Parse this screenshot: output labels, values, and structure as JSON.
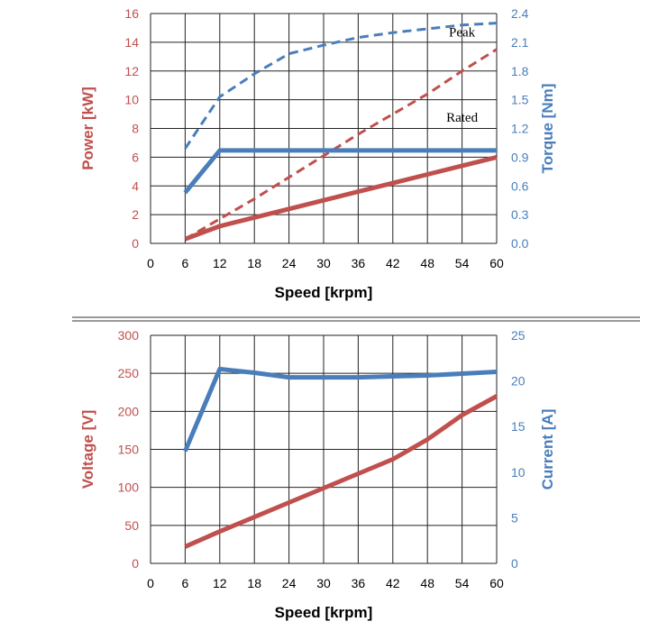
{
  "colors": {
    "red": "#c0504d",
    "blue": "#4a7ebb",
    "grid": "#222222",
    "separator": "#999999"
  },
  "chart_data": [
    {
      "type": "line",
      "xlabel": "Speed [krpm]",
      "x_ticks": [
        0,
        6,
        12,
        18,
        24,
        30,
        36,
        42,
        48,
        54,
        60
      ],
      "xlim": [
        0,
        60
      ],
      "grid": true,
      "y_left": {
        "label": "Power [kW]",
        "lim": [
          0,
          16
        ],
        "ticks": [
          "0",
          "2",
          "4",
          "6",
          "8",
          "10",
          "12",
          "14",
          "16"
        ],
        "color": "#c0504d"
      },
      "y_right": {
        "label": "Torque [Nm]",
        "lim": [
          0,
          2.4
        ],
        "ticks": [
          "0.0",
          "0.3",
          "0.6",
          "0.9",
          "1.2",
          "1.5",
          "1.8",
          "2.1",
          "2.4"
        ],
        "color": "#4a7ebb"
      },
      "annotations": [
        {
          "text": "Peak",
          "x": 54,
          "y_axis": "right",
          "y": 2.16
        },
        {
          "text": "Rated",
          "x": 54,
          "y_axis": "right",
          "y": 1.27
        }
      ],
      "series": [
        {
          "axis": "left",
          "color": "#c0504d",
          "dash": true,
          "width": 3,
          "x": [
            6,
            12,
            18,
            24,
            30,
            36,
            42,
            48,
            54,
            60
          ],
          "values": [
            0.3,
            1.7,
            3.1,
            4.6,
            6.1,
            7.6,
            9.0,
            10.4,
            12.0,
            13.5
          ]
        },
        {
          "axis": "left",
          "color": "#c0504d",
          "dash": false,
          "width": 5,
          "x": [
            6,
            12,
            18,
            24,
            30,
            36,
            42,
            48,
            54,
            60
          ],
          "values": [
            0.3,
            1.2,
            1.8,
            2.4,
            3.0,
            3.6,
            4.2,
            4.8,
            5.4,
            6.0
          ]
        },
        {
          "axis": "right",
          "color": "#4a7ebb",
          "dash": true,
          "width": 3,
          "x": [
            6,
            12,
            18,
            24,
            30,
            36,
            42,
            48,
            54,
            60
          ],
          "values": [
            0.99,
            1.53,
            1.77,
            1.98,
            2.07,
            2.15,
            2.2,
            2.24,
            2.28,
            2.3
          ]
        },
        {
          "axis": "right",
          "color": "#4a7ebb",
          "dash": false,
          "width": 5,
          "x": [
            6,
            12,
            18,
            24,
            30,
            36,
            42,
            48,
            54,
            60
          ],
          "values": [
            0.53,
            0.97,
            0.97,
            0.97,
            0.97,
            0.97,
            0.97,
            0.97,
            0.97,
            0.97
          ]
        }
      ]
    },
    {
      "type": "line",
      "xlabel": "Speed [krpm]",
      "x_ticks": [
        0,
        6,
        12,
        18,
        24,
        30,
        36,
        42,
        48,
        54,
        60
      ],
      "xlim": [
        0,
        60
      ],
      "grid": true,
      "y_left": {
        "label": "Voltage [V]",
        "lim": [
          0,
          300
        ],
        "ticks": [
          "0",
          "50",
          "100",
          "150",
          "200",
          "250",
          "300"
        ],
        "color": "#c0504d"
      },
      "y_right": {
        "label": "Current [A]",
        "lim": [
          0,
          25
        ],
        "ticks": [
          "0",
          "5",
          "10",
          "15",
          "20",
          "25"
        ],
        "color": "#4a7ebb"
      },
      "annotations": [],
      "series": [
        {
          "axis": "left",
          "color": "#c0504d",
          "dash": false,
          "width": 5,
          "x": [
            6,
            12,
            18,
            24,
            30,
            36,
            42,
            48,
            54,
            60
          ],
          "values": [
            22,
            42,
            61,
            80,
            99,
            118,
            137,
            163,
            195,
            220
          ]
        },
        {
          "axis": "right",
          "color": "#4a7ebb",
          "dash": false,
          "width": 5,
          "x": [
            6,
            12,
            18,
            24,
            30,
            36,
            42,
            48,
            54,
            60
          ],
          "values": [
            12.3,
            21.3,
            20.9,
            20.4,
            20.4,
            20.4,
            20.5,
            20.6,
            20.8,
            21.0
          ]
        }
      ]
    }
  ]
}
